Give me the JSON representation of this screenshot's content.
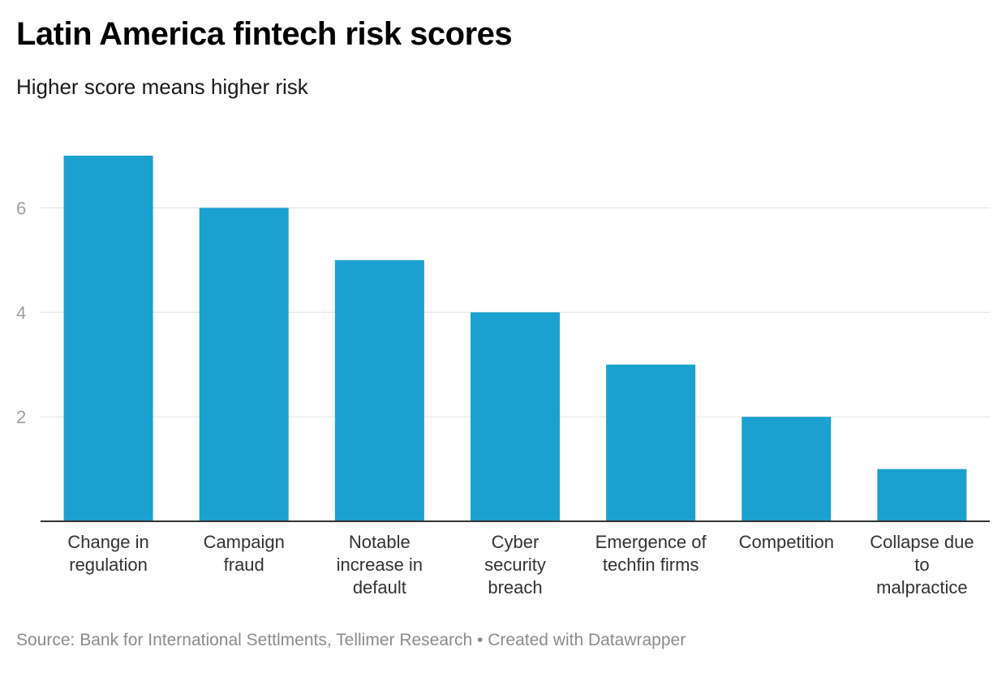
{
  "header": {
    "title": "Latin America fintech risk scores",
    "subtitle": "Higher score means higher risk"
  },
  "footer": {
    "source": "Source: Bank for International Settlments, Tellimer Research • Created with Datawrapper"
  },
  "colors": {
    "bar": "#1aa1cf"
  },
  "chart_data": {
    "type": "bar",
    "title": "Latin America fintech risk scores",
    "subtitle": "Higher score means higher risk",
    "xlabel": "",
    "ylabel": "",
    "ylim": [
      0,
      7
    ],
    "yticks": [
      2,
      4,
      6
    ],
    "grid": true,
    "categories": [
      [
        "Change in",
        "regulation"
      ],
      [
        "Campaign",
        "fraud"
      ],
      [
        "Notable",
        "increase in",
        "default"
      ],
      [
        "Cyber",
        "security",
        "breach"
      ],
      [
        "Emergence of",
        "techfin firms"
      ],
      [
        "Competition"
      ],
      [
        "Collapse due",
        "to",
        "malpractice"
      ]
    ],
    "values": [
      7,
      6,
      5,
      4,
      3,
      2,
      1
    ]
  }
}
